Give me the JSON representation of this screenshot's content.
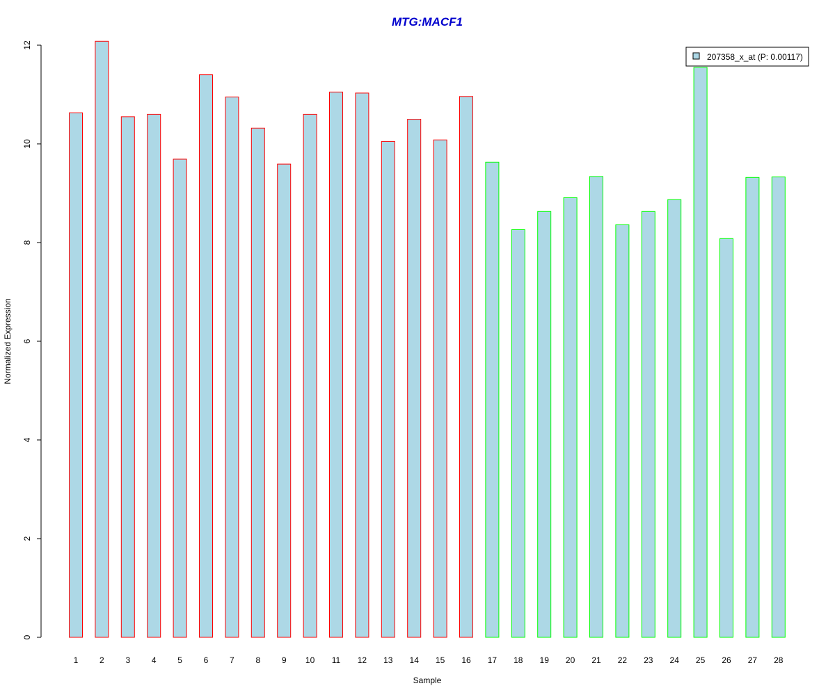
{
  "chart_data": {
    "type": "bar",
    "title": "MTG:MACF1",
    "xlabel": "Sample",
    "ylabel": "Normalized Expression",
    "ylim": [
      0,
      12
    ],
    "yticks": [
      0,
      2,
      4,
      6,
      8,
      10,
      12
    ],
    "categories": [
      "1",
      "2",
      "3",
      "4",
      "5",
      "6",
      "7",
      "8",
      "9",
      "10",
      "11",
      "12",
      "13",
      "14",
      "15",
      "16",
      "17",
      "18",
      "19",
      "20",
      "21",
      "22",
      "23",
      "24",
      "25",
      "26",
      "27",
      "28"
    ],
    "series": [
      {
        "name": "207358_x_at (P: 0.00117)",
        "values": [
          10.63,
          12.08,
          10.55,
          10.6,
          9.69,
          11.4,
          10.95,
          10.32,
          9.59,
          10.6,
          11.05,
          11.03,
          10.05,
          10.5,
          10.08,
          10.96,
          9.63,
          8.26,
          8.63,
          8.91,
          9.34,
          8.36,
          8.63,
          8.87,
          11.55,
          8.08,
          9.32,
          9.33
        ]
      }
    ],
    "bar_fill_color": "#add8e6",
    "group_border_colors": [
      "#ff0000",
      "#00ff00"
    ],
    "group_sizes": [
      16,
      12
    ],
    "title_color": "#0000cd",
    "grid": false,
    "legend_position": "top-right"
  }
}
